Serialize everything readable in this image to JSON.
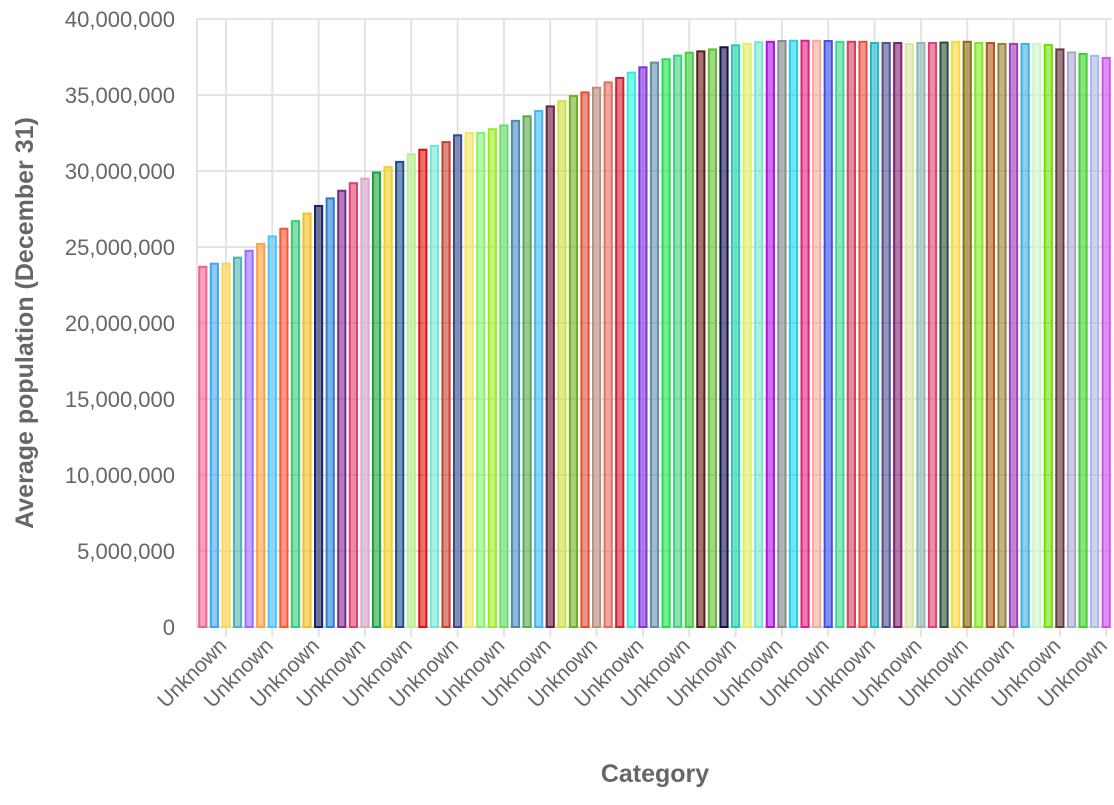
{
  "chart_data": {
    "type": "bar",
    "xlabel": "Category",
    "ylabel": "Average population (December 31)",
    "ylim": [
      0,
      40000000
    ],
    "yticks": [
      0,
      5000000,
      10000000,
      15000000,
      20000000,
      25000000,
      30000000,
      35000000,
      40000000
    ],
    "grid": true,
    "legend": "none",
    "categories": [
      "Unknown",
      "Unknown",
      "Unknown",
      "Unknown",
      "Unknown",
      "Unknown",
      "Unknown",
      "Unknown",
      "Unknown",
      "Unknown",
      "Unknown",
      "Unknown",
      "Unknown",
      "Unknown",
      "Unknown",
      "Unknown",
      "Unknown",
      "Unknown",
      "Unknown",
      "Unknown",
      "Unknown",
      "Unknown",
      "Unknown",
      "Unknown",
      "Unknown",
      "Unknown",
      "Unknown",
      "Unknown",
      "Unknown",
      "Unknown",
      "Unknown",
      "Unknown",
      "Unknown",
      "Unknown",
      "Unknown",
      "Unknown",
      "Unknown",
      "Unknown",
      "Unknown",
      "Unknown",
      "Unknown",
      "Unknown",
      "Unknown",
      "Unknown",
      "Unknown",
      "Unknown",
      "Unknown",
      "Unknown",
      "Unknown",
      "Unknown",
      "Unknown",
      "Unknown",
      "Unknown",
      "Unknown",
      "Unknown",
      "Unknown",
      "Unknown",
      "Unknown",
      "Unknown",
      "Unknown",
      "Unknown",
      "Unknown",
      "Unknown",
      "Unknown",
      "Unknown",
      "Unknown",
      "Unknown",
      "Unknown",
      "Unknown",
      "Unknown",
      "Unknown",
      "Unknown",
      "Unknown",
      "Unknown",
      "Unknown",
      "Unknown",
      "Unknown",
      "Unknown",
      "Unknown"
    ],
    "values": [
      23700000,
      23900000,
      23900000,
      24300000,
      24750000,
      25200000,
      25700000,
      26200000,
      26700000,
      27200000,
      27700000,
      28200000,
      28700000,
      29200000,
      29500000,
      29900000,
      30250000,
      30600000,
      31100000,
      31400000,
      31650000,
      31900000,
      32350000,
      32500000,
      32500000,
      32750000,
      33000000,
      33300000,
      33600000,
      33950000,
      34250000,
      34600000,
      34930000,
      35170000,
      35480000,
      35830000,
      36120000,
      36470000,
      36820000,
      37130000,
      37350000,
      37590000,
      37780000,
      37870000,
      38000000,
      38140000,
      38270000,
      38370000,
      38470000,
      38500000,
      38550000,
      38570000,
      38570000,
      38570000,
      38550000,
      38500000,
      38500000,
      38500000,
      38420000,
      38420000,
      38420000,
      38360000,
      38420000,
      38420000,
      38450000,
      38500000,
      38500000,
      38420000,
      38420000,
      38360000,
      38360000,
      38360000,
      38360000,
      38300000,
      38000000,
      37800000,
      37700000,
      37570000,
      37430000
    ],
    "colors": [
      "#f06292",
      "#42a5f5",
      "#ffd54f",
      "#4db6ac",
      "#9c6cff",
      "#ffa040",
      "#4fc3f7",
      "#ff5533",
      "#33cc77",
      "#f0c020",
      "#1a2366",
      "#2a7fd4",
      "#7b2a8c",
      "#e0406a",
      "#d8a8c8",
      "#1aa040",
      "#f0d020",
      "#1f4f8a",
      "#b8f090",
      "#dd1111",
      "#70e8d8",
      "#c84030",
      "#3a4a8a",
      "#f0e860",
      "#88f070",
      "#99ee22",
      "#66e066",
      "#4a88b8",
      "#5aa850",
      "#44b8f0",
      "#6a2040",
      "#d0e040",
      "#70b020",
      "#e05030",
      "#b89080",
      "#e07060",
      "#d02030",
      "#30f0e0",
      "#8030e0",
      "#6090a8",
      "#20e050",
      "#40d080",
      "#40d040",
      "#601818",
      "#60c030",
      "#101050",
      "#20d0b0",
      "#e0f060",
      "#70e8d0",
      "#b010e0",
      "#888890",
      "#20d0f0",
      "#e0207a",
      "#f8a898",
      "#4050f0",
      "#40d890",
      "#d84060",
      "#e85040",
      "#20b8c8",
      "#505090",
      "#802070",
      "#d8e8a0",
      "#90b8b0",
      "#e04070",
      "#2a5030",
      "#f8d840",
      "#887010",
      "#80e820",
      "#b05818",
      "#988040",
      "#a040c0",
      "#40b0e0",
      "#c8f8c8",
      "#70e000",
      "#683840",
      "#a8a8d0",
      "#40d030",
      "#a8b8e8",
      "#d050f0"
    ],
    "label_every": 4,
    "label_offset": 2
  }
}
